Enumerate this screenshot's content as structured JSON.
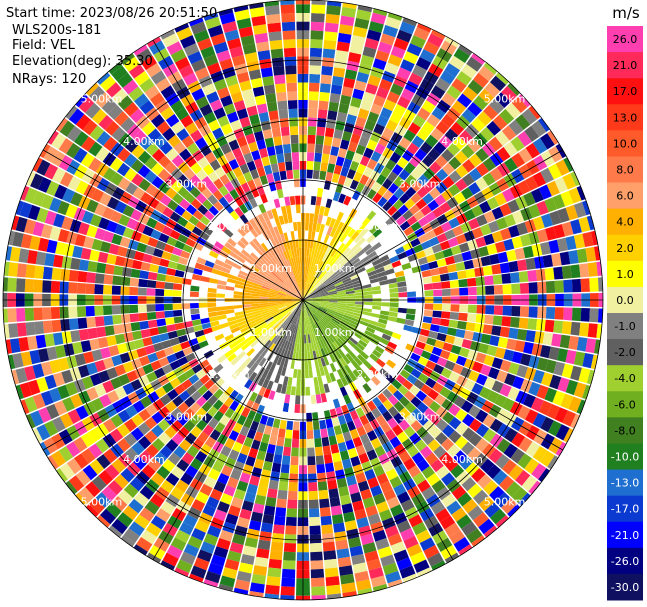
{
  "info": {
    "start_time": "Start time: 2023/08/26 20:51:50",
    "instrument": "WLS200s-181",
    "field": "Field: VEL",
    "elevation": "Elevation(deg): 35.30",
    "nrays": "NRays: 120"
  },
  "chart_data": {
    "type": "heatmap",
    "projection": "polar-ppi",
    "nrays": 120,
    "range_rings_km": [
      1,
      2,
      3,
      4,
      5
    ],
    "ring_labels": [
      "1.00km",
      "2.00km",
      "3.00km",
      "4.00km",
      "5.00km"
    ],
    "azimuth_lines": "every 30 degrees",
    "colorbar": {
      "unit": "m/s",
      "ticks": [
        "26.0",
        "21.0",
        "17.0",
        "13.0",
        "10.0",
        "8.0",
        "6.0",
        "4.0",
        "2.0",
        "1.0",
        "0.0",
        "-1.0",
        "-2.0",
        "-4.0",
        "-6.0",
        "-8.0",
        "-10.0",
        "-13.0",
        "-17.0",
        "-21.0",
        "-26.0",
        "-30.0"
      ],
      "colors": [
        "#ff3eb0",
        "#ff2a5a",
        "#ff1010",
        "#ff3a1a",
        "#ff5a2a",
        "#ff7a4a",
        "#ffa06a",
        "#ffb000",
        "#ffd000",
        "#ffff00",
        "#f0f0a0",
        "#808080",
        "#606060",
        "#a0d030",
        "#70b020",
        "#408020",
        "#208020",
        "#1f6fd0",
        "#0a3ad0",
        "#0000ff",
        "#000080",
        "#101060"
      ]
    },
    "pattern": "near-range (<~1.6 km): positive velocities (yellow/orange) to north and west, negative (green/blue) to south and east; beyond ~2 km noisy random velocities across the full color scale"
  }
}
